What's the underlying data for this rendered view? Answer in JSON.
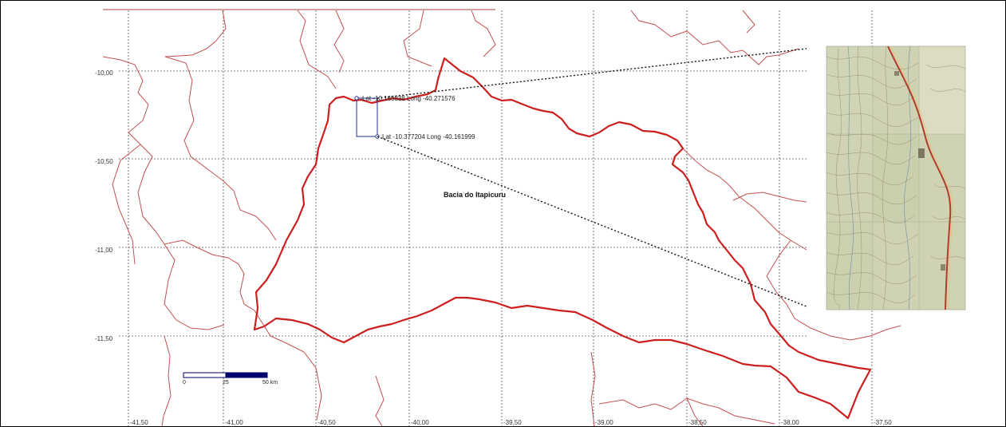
{
  "map": {
    "basin_label": "Bacia do Itapicuru",
    "lat_ticks": [
      "-10,00",
      "-10,50",
      "-11,00",
      "-11,50"
    ],
    "lon_ticks": [
      "-41,50",
      "-41,00",
      "-40,50",
      "-40,00",
      "-39,50",
      "-39,00",
      "-38,50",
      "-38,00",
      "-37,50"
    ],
    "point_nw": {
      "lat": "-10.165838",
      "long": "-40.271576",
      "text": "Lat -10.165838   Long -40.271576"
    },
    "point_se": {
      "lat": "-10.377204",
      "long": "-40.161999",
      "text": "Lat -10.377204   Long -40.161999"
    },
    "scale_bar": {
      "labels": [
        "0",
        "25",
        "50 km"
      ]
    },
    "colors": {
      "grid": "#555555",
      "boundary": "#c45050",
      "basin": "#cc1f1f",
      "scale_fill": "#00006e",
      "rect": "#1f2f8f"
    }
  }
}
